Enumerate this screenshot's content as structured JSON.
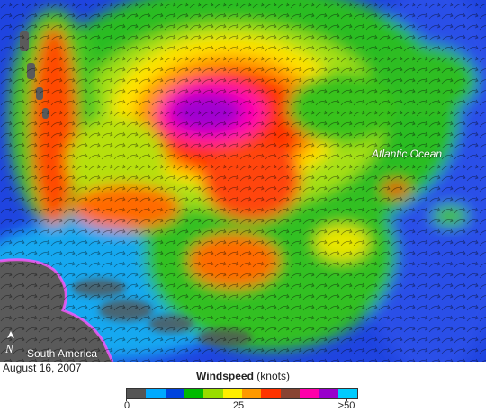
{
  "map": {
    "ocean_label": "Atlantic Ocean",
    "continent_label": "South America",
    "north_symbol": "N",
    "date": "August 16, 2007"
  },
  "legend": {
    "title": "Windspeed",
    "units": "(knots)",
    "ticks": [
      "0",
      "25",
      ">50"
    ],
    "tick_values": [
      0,
      25,
      50
    ],
    "colors": [
      "#555555",
      "#00aaff",
      "#0044dd",
      "#00bb00",
      "#99dd00",
      "#ffee00",
      "#ff9900",
      "#ff3300",
      "#884433",
      "#ff00aa",
      "#9900cc",
      "#00ccff"
    ]
  }
}
